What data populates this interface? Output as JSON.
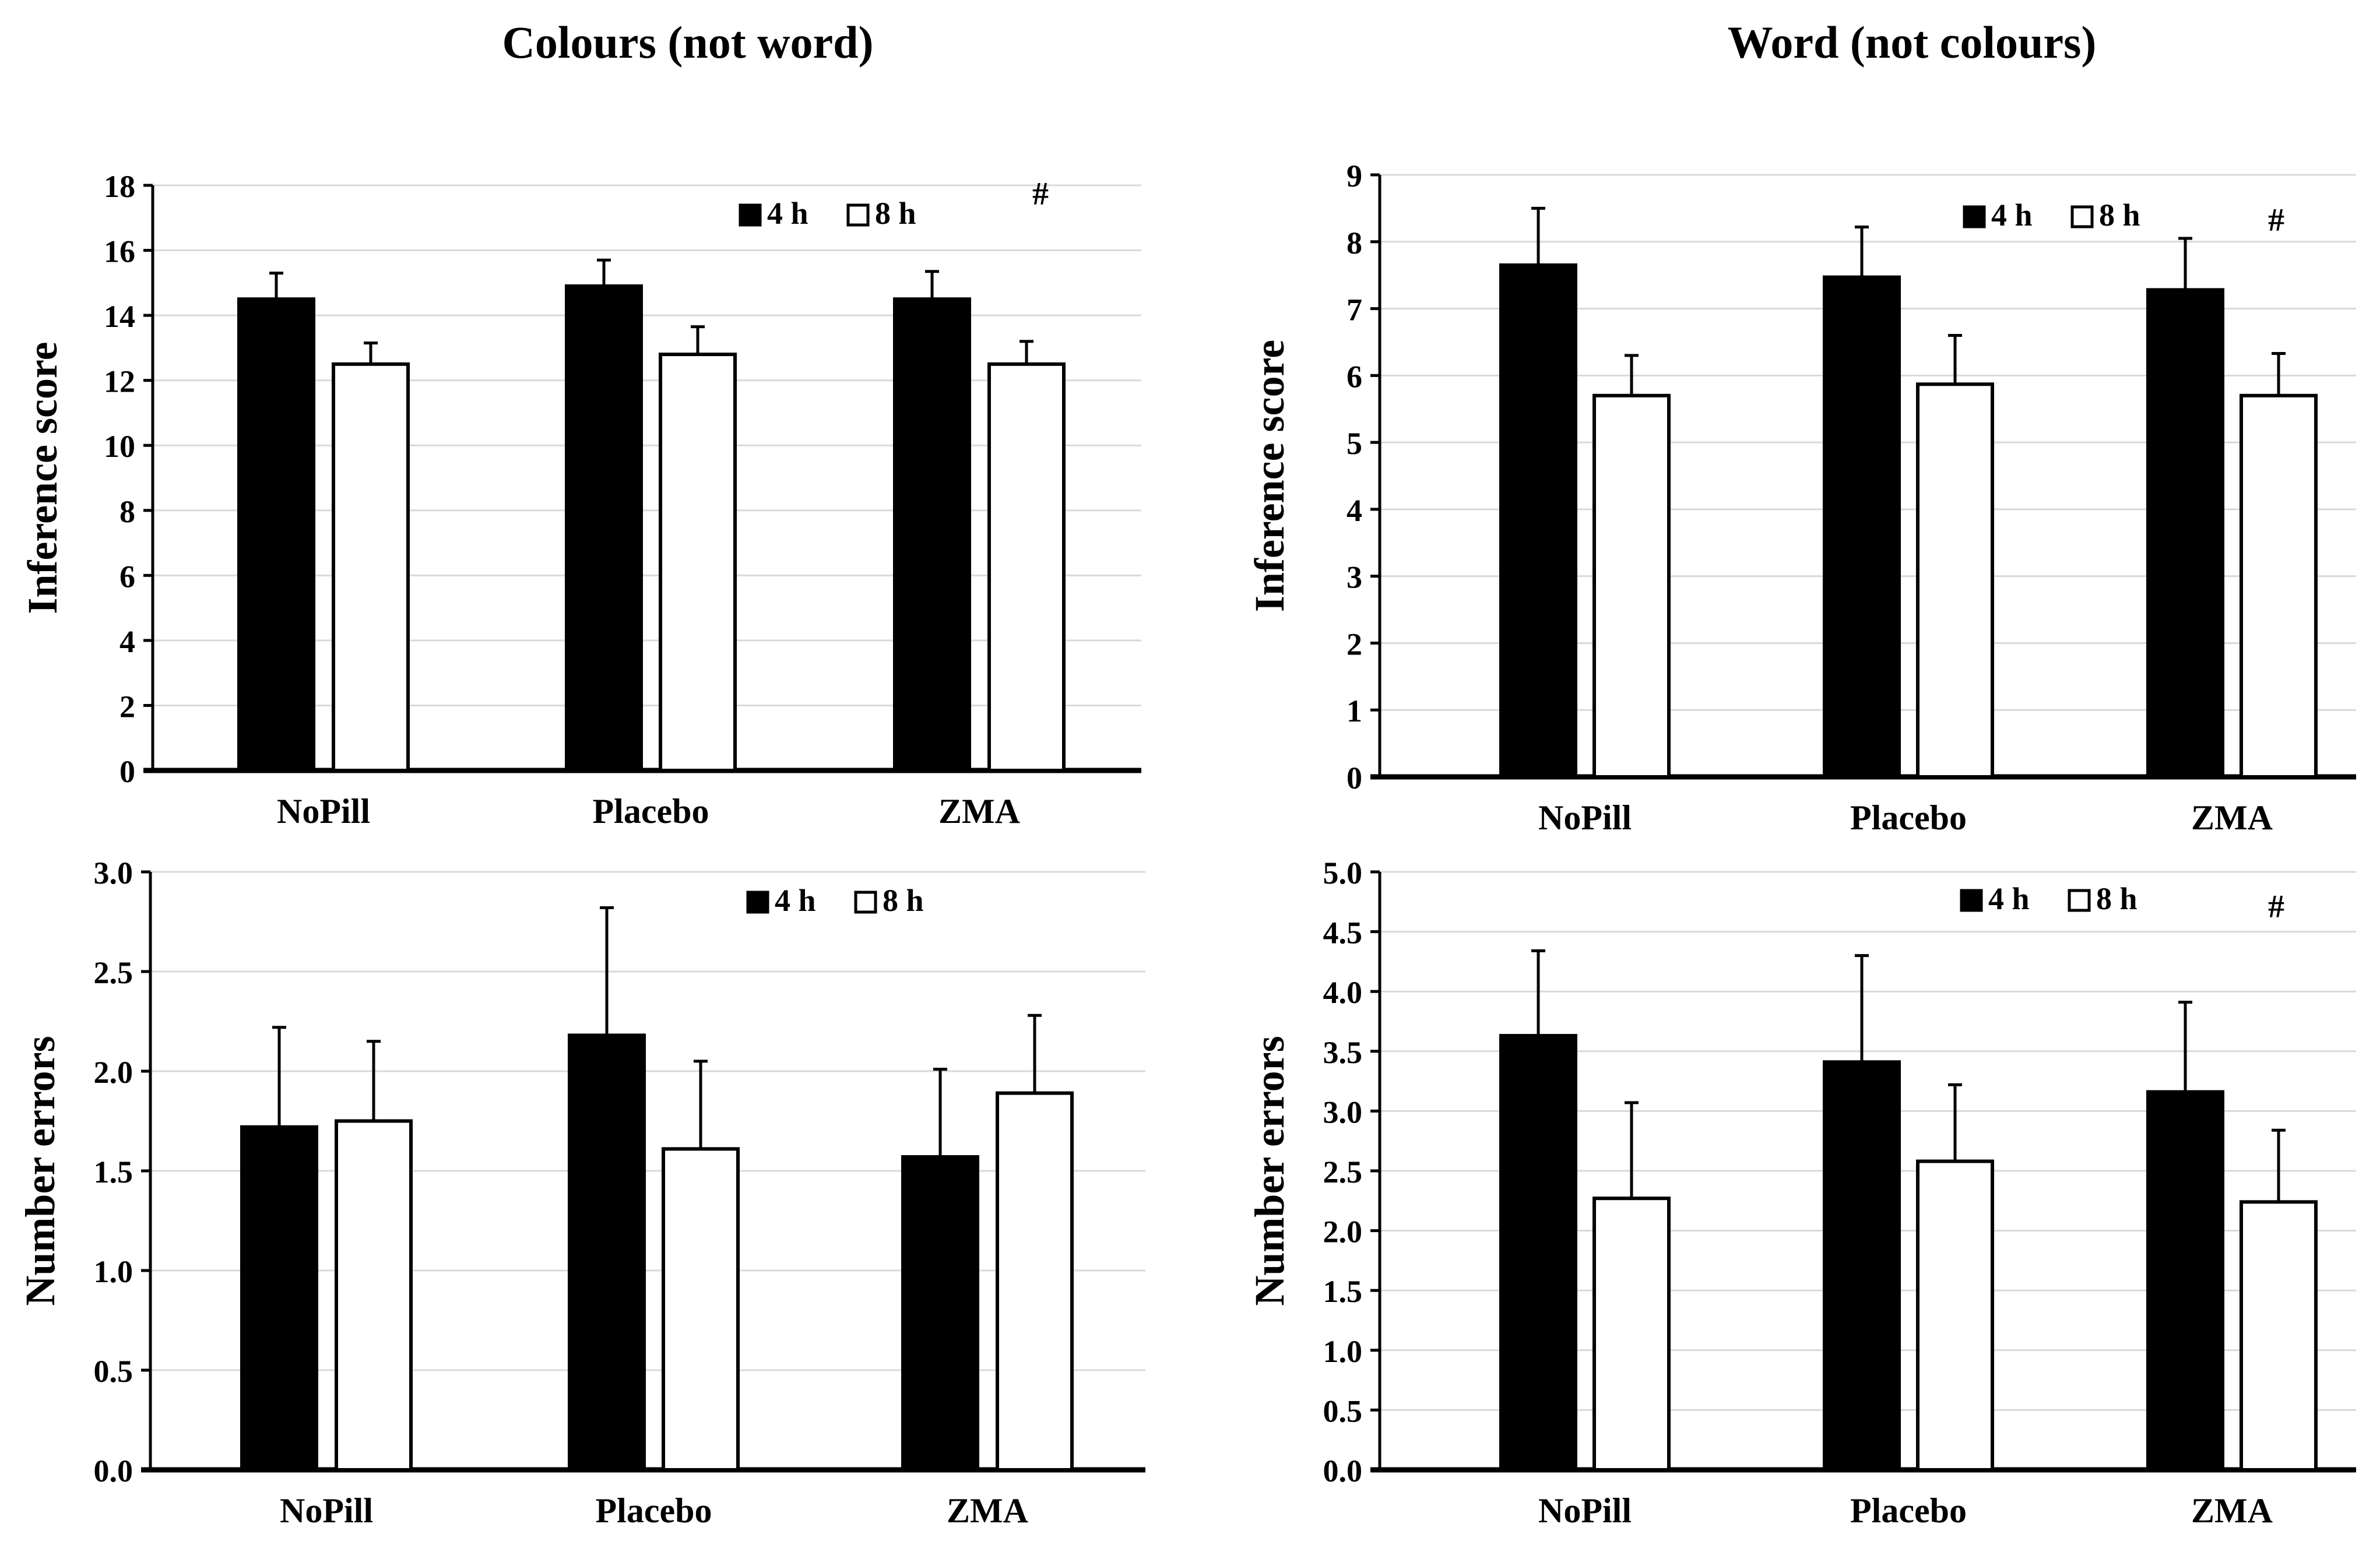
{
  "column_titles": {
    "left": "Colours (not word)",
    "right": "Word (not colours)"
  },
  "chart_data": [
    {
      "type": "bar",
      "title": "Colours (not word)",
      "ylabel": "Inference score",
      "xlabel": "",
      "ylim": [
        0,
        18
      ],
      "yticks": [
        "0",
        "2",
        "4",
        "6",
        "8",
        "10",
        "12",
        "14",
        "16",
        "18"
      ],
      "categories": [
        "NoPill",
        "Placebo",
        "ZMA"
      ],
      "series": [
        {
          "name": "4 h",
          "color": "#000000",
          "values": [
            14.5,
            14.9,
            14.5
          ],
          "errors": [
            0.8,
            0.8,
            0.85
          ]
        },
        {
          "name": "8 h",
          "color": "#ffffff",
          "values": [
            12.5,
            12.8,
            12.5
          ],
          "errors": [
            0.65,
            0.85,
            0.7
          ]
        }
      ],
      "annotation": "#",
      "grid": true,
      "legend": "top-right"
    },
    {
      "type": "bar",
      "title": "Word (not colours)",
      "ylabel": "Inference score",
      "xlabel": "",
      "ylim": [
        0,
        9
      ],
      "yticks": [
        "0",
        "1",
        "2",
        "3",
        "4",
        "5",
        "6",
        "7",
        "8",
        "9"
      ],
      "categories": [
        "NoPill",
        "Placebo",
        "ZMA"
      ],
      "series": [
        {
          "name": "4 h",
          "color": "#000000",
          "values": [
            7.65,
            7.47,
            7.28
          ],
          "errors": [
            0.85,
            0.75,
            0.77
          ]
        },
        {
          "name": "8 h",
          "color": "#ffffff",
          "values": [
            5.7,
            5.87,
            5.7
          ],
          "errors": [
            0.6,
            0.73,
            0.63
          ]
        }
      ],
      "annotation": "#",
      "grid": true,
      "legend": "top-right"
    },
    {
      "type": "bar",
      "title": "",
      "ylabel": "Number errors",
      "xlabel": "",
      "ylim": [
        0,
        3.0
      ],
      "yticks": [
        "0.0",
        "0.5",
        "1.0",
        "1.5",
        "2.0",
        "2.5",
        "3.0"
      ],
      "categories": [
        "NoPill",
        "Placebo",
        "ZMA"
      ],
      "series": [
        {
          "name": "4 h",
          "color": "#000000",
          "values": [
            1.72,
            2.18,
            1.57
          ],
          "errors": [
            0.5,
            0.64,
            0.44
          ]
        },
        {
          "name": "8 h",
          "color": "#ffffff",
          "values": [
            1.75,
            1.61,
            1.89
          ],
          "errors": [
            0.4,
            0.44,
            0.39
          ]
        }
      ],
      "annotation": "",
      "grid": true,
      "legend": "top-right"
    },
    {
      "type": "bar",
      "title": "",
      "ylabel": "Number errors",
      "xlabel": "",
      "ylim": [
        0,
        5.0
      ],
      "yticks": [
        "0.0",
        "0.5",
        "1.0",
        "1.5",
        "2.0",
        "2.5",
        "3.0",
        "3.5",
        "4.0",
        "4.5",
        "5.0"
      ],
      "categories": [
        "NoPill",
        "Placebo",
        "ZMA"
      ],
      "series": [
        {
          "name": "4 h",
          "color": "#000000",
          "values": [
            3.63,
            3.41,
            3.16
          ],
          "errors": [
            0.71,
            0.89,
            0.75
          ]
        },
        {
          "name": "8 h",
          "color": "#ffffff",
          "values": [
            2.27,
            2.58,
            2.24
          ],
          "errors": [
            0.8,
            0.64,
            0.6
          ]
        }
      ],
      "annotation": "#",
      "grid": true,
      "legend": "top-right"
    }
  ]
}
